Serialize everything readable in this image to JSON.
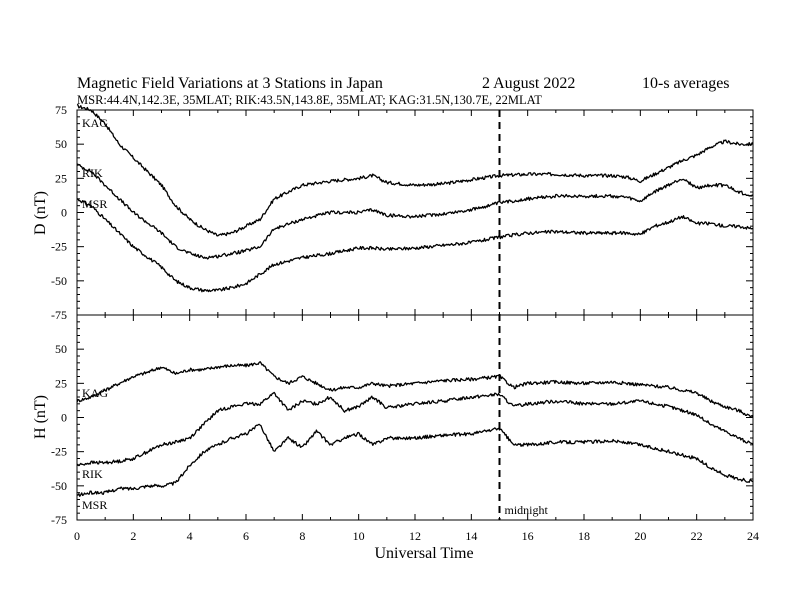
{
  "chart_data": {
    "type": "line",
    "title": "Magnetic Field Variations at 3 Stations in Japan",
    "date": "2   August   2022",
    "averaging": "10-s averages",
    "subtitle": "MSR:44.4N,142.3E, 35MLAT;  RIK:43.5N,143.8E, 35MLAT;  KAG:31.5N,130.7E, 22MLAT",
    "xlabel": "Universal Time",
    "xlim": [
      0,
      24
    ],
    "x_ticks": [
      0,
      2,
      4,
      6,
      8,
      10,
      12,
      14,
      16,
      18,
      20,
      22,
      24
    ],
    "marker": {
      "x": 15,
      "label": "midnight"
    },
    "panels": [
      {
        "ylabel": "D (nT)",
        "ylim": [
          -75,
          75
        ],
        "y_ticks": [
          75,
          50,
          25,
          0,
          -25,
          -50,
          -75
        ],
        "series": [
          {
            "name": "KAG",
            "x": [
              0,
              0.5,
              1,
              1.5,
              2,
              3,
              3.5,
              4,
              4.5,
              5,
              5.5,
              6,
              6.5,
              7,
              8,
              9,
              10,
              10.5,
              11,
              12,
              13,
              14,
              15,
              16,
              17,
              18,
              19,
              19.5,
              20,
              20.5,
              21,
              21.5,
              22,
              22.5,
              23,
              23.5,
              24
            ],
            "values": [
              78,
              75,
              65,
              50,
              40,
              20,
              5,
              -5,
              -12,
              -17,
              -15,
              -10,
              -5,
              10,
              20,
              23,
              25,
              27,
              22,
              20,
              21,
              24,
              27,
              28,
              28,
              27,
              27,
              26,
              23,
              28,
              33,
              38,
              42,
              48,
              52,
              50,
              50
            ]
          },
          {
            "name": "RIK",
            "x": [
              0,
              0.5,
              1,
              1.5,
              2,
              3,
              3.5,
              4,
              4.5,
              5,
              5.5,
              6,
              6.5,
              7,
              8,
              9,
              10,
              10.5,
              11,
              12,
              13,
              14,
              15,
              16,
              17,
              18,
              19,
              19.5,
              20,
              20.5,
              21,
              21.5,
              22,
              22.5,
              23,
              23.5,
              24
            ],
            "values": [
              35,
              30,
              20,
              10,
              0,
              -15,
              -25,
              -30,
              -33,
              -32,
              -30,
              -28,
              -25,
              -12,
              -5,
              0,
              0,
              2,
              -2,
              -3,
              -1,
              2,
              7,
              10,
              12,
              12,
              12,
              11,
              8,
              15,
              20,
              25,
              18,
              20,
              20,
              15,
              12
            ]
          },
          {
            "name": "MSR",
            "x": [
              0,
              0.5,
              1,
              1.5,
              2,
              3,
              3.5,
              4,
              4.5,
              5,
              5.5,
              6,
              6.5,
              7,
              8,
              9,
              10,
              10.5,
              11,
              12,
              13,
              14,
              15,
              16,
              17,
              18,
              19,
              19.5,
              20,
              20.5,
              21,
              21.5,
              22,
              22.5,
              23,
              23.5,
              24
            ],
            "values": [
              10,
              5,
              -5,
              -15,
              -25,
              -40,
              -50,
              -55,
              -57,
              -57,
              -55,
              -52,
              -45,
              -38,
              -33,
              -30,
              -26,
              -26,
              -27,
              -26,
              -24,
              -22,
              -18,
              -15,
              -14,
              -15,
              -15,
              -15,
              -16,
              -10,
              -7,
              -3,
              -8,
              -8,
              -10,
              -10,
              -12
            ]
          }
        ]
      },
      {
        "ylabel": "H (nT)",
        "ylim": [
          -75,
          75
        ],
        "y_ticks": [
          50,
          25,
          0,
          -25,
          -50,
          -75
        ],
        "series": [
          {
            "name": "KAG",
            "x": [
              0,
              0.5,
              1,
              1.5,
              2,
              2.5,
              3,
              3.5,
              4,
              4.5,
              5,
              5.5,
              6,
              6.5,
              7,
              7.5,
              8,
              8.5,
              9,
              9.5,
              10,
              10.5,
              11,
              12,
              13,
              14,
              15,
              15.5,
              16,
              17,
              18,
              19,
              20,
              21,
              22,
              22.5,
              23,
              23.5,
              24
            ],
            "values": [
              12,
              15,
              20,
              25,
              30,
              33,
              37,
              32,
              35,
              35,
              37,
              38,
              38,
              40,
              30,
              25,
              30,
              25,
              20,
              22,
              22,
              25,
              23,
              25,
              27,
              28,
              30,
              22,
              25,
              26,
              25,
              26,
              24,
              22,
              18,
              12,
              8,
              5,
              0
            ]
          },
          {
            "name": "RIK",
            "x": [
              0,
              0.5,
              1,
              1.5,
              2,
              2.5,
              3,
              3.5,
              4,
              4.5,
              5,
              5.5,
              6,
              6.5,
              7,
              7.5,
              8,
              8.5,
              9,
              9.5,
              10,
              10.5,
              11,
              12,
              13,
              14,
              15,
              15.5,
              16,
              17,
              18,
              19,
              20,
              21,
              22,
              22.5,
              23,
              23.5,
              24
            ],
            "values": [
              -35,
              -33,
              -33,
              -32,
              -30,
              -25,
              -20,
              -18,
              -15,
              -5,
              5,
              8,
              10,
              10,
              18,
              5,
              12,
              10,
              15,
              5,
              8,
              15,
              7,
              10,
              12,
              15,
              17,
              8,
              10,
              12,
              10,
              10,
              12,
              8,
              2,
              -5,
              -10,
              -15,
              -20
            ]
          },
          {
            "name": "MSR",
            "x": [
              0,
              0.5,
              1,
              1.5,
              2,
              2.5,
              3,
              3.5,
              4,
              4.5,
              5,
              5.5,
              6,
              6.5,
              7,
              7.5,
              8,
              8.5,
              9,
              9.5,
              10,
              10.5,
              11,
              12,
              13,
              14,
              15,
              15.5,
              16,
              17,
              18,
              19,
              20,
              21,
              22,
              22.5,
              23,
              23.5,
              24
            ],
            "values": [
              -57,
              -55,
              -55,
              -52,
              -52,
              -50,
              -50,
              -48,
              -35,
              -25,
              -20,
              -15,
              -12,
              -5,
              -25,
              -15,
              -22,
              -10,
              -20,
              -15,
              -12,
              -20,
              -15,
              -15,
              -13,
              -12,
              -8,
              -20,
              -20,
              -18,
              -18,
              -17,
              -20,
              -25,
              -30,
              -37,
              -42,
              -45,
              -47
            ]
          }
        ]
      }
    ],
    "legend": "inline labels at left of each curve"
  }
}
